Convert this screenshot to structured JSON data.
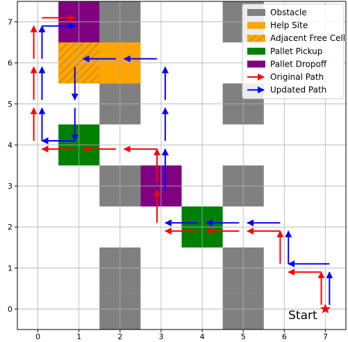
{
  "chart_data": {
    "type": "grid-path-plot",
    "title": "",
    "xlabel": "",
    "ylabel": "",
    "xlim": [
      -0.5,
      7.5
    ],
    "ylim": [
      -0.5,
      7.5
    ],
    "xticks": [
      0,
      1,
      2,
      3,
      4,
      5,
      6,
      7
    ],
    "yticks": [
      0,
      1,
      2,
      3,
      4,
      5,
      6,
      7
    ],
    "grid": true,
    "legend_position": "top-right",
    "colors": {
      "obstacle": "#808080",
      "help_site": "#ffa500",
      "adjacent_free_cell": "#ffa500",
      "adjacent_hatch": "#b07a10",
      "pallet_pickup": "#008000",
      "pallet_dropoff": "#800080",
      "original_path": "#ff0000",
      "updated_path": "#0000ff",
      "start_marker": "#ff0000"
    },
    "legend": [
      {
        "label": "Obstacle",
        "kind": "patch",
        "key": "obstacle"
      },
      {
        "label": "Help Site",
        "kind": "patch",
        "key": "help_site"
      },
      {
        "label": "Adjacent Free Cell",
        "kind": "hatch",
        "key": "adjacent_free_cell"
      },
      {
        "label": "Pallet Pickup",
        "kind": "patch",
        "key": "pallet_pickup"
      },
      {
        "label": "Pallet Dropoff",
        "kind": "patch",
        "key": "pallet_dropoff"
      },
      {
        "label": "Original Path",
        "kind": "arrow",
        "key": "original_path"
      },
      {
        "label": "Updated Path",
        "kind": "arrow",
        "key": "updated_path"
      }
    ],
    "obstacles": [
      [
        2,
        0
      ],
      [
        2,
        1
      ],
      [
        2,
        5
      ],
      [
        2,
        6
      ],
      [
        2,
        7
      ],
      [
        2,
        3
      ],
      [
        5,
        0
      ],
      [
        5,
        1
      ],
      [
        5,
        3
      ],
      [
        5,
        5
      ],
      [
        5,
        7
      ]
    ],
    "help_site": [
      [
        2,
        6
      ]
    ],
    "adjacent_free_cell": [
      [
        1,
        6
      ]
    ],
    "pallet_pickup": [
      [
        1,
        4
      ],
      [
        4,
        2
      ]
    ],
    "pallet_dropoff": [
      [
        1,
        7
      ],
      [
        3,
        3
      ]
    ],
    "start": {
      "x": 7,
      "y": 0,
      "label": "Start"
    },
    "original_path": [
      [
        6.9,
        0.1,
        6.9,
        0.9
      ],
      [
        6.9,
        0.9,
        6.1,
        0.9
      ],
      [
        5.9,
        1.1,
        5.9,
        1.9
      ],
      [
        5.9,
        1.9,
        5.1,
        1.9
      ],
      [
        4.9,
        1.9,
        4.1,
        1.9
      ],
      [
        3.9,
        1.9,
        3.1,
        1.9
      ],
      [
        2.9,
        2.1,
        2.9,
        2.9
      ],
      [
        2.9,
        3.1,
        2.9,
        3.9
      ],
      [
        2.9,
        3.9,
        2.1,
        3.9
      ],
      [
        1.9,
        3.9,
        1.1,
        3.9
      ],
      [
        0.9,
        3.9,
        0.1,
        3.9
      ],
      [
        -0.1,
        4.1,
        -0.1,
        4.9
      ],
      [
        -0.1,
        5.1,
        -0.1,
        5.9
      ],
      [
        -0.1,
        6.1,
        -0.1,
        6.9
      ],
      [
        0.1,
        7.1,
        0.9,
        7.1
      ]
    ],
    "updated_path": [
      [
        7.1,
        0.1,
        7.1,
        0.9
      ],
      [
        7.1,
        1.1,
        6.1,
        1.1
      ],
      [
        6.1,
        1.1,
        6.1,
        1.9
      ],
      [
        5.9,
        2.1,
        5.1,
        2.1
      ],
      [
        4.9,
        2.1,
        4.1,
        2.1
      ],
      [
        3.9,
        2.1,
        3.1,
        2.1
      ],
      [
        3.1,
        2.9,
        3.1,
        3.9
      ],
      [
        3.1,
        4.1,
        3.1,
        4.9
      ],
      [
        3.1,
        5.1,
        3.1,
        5.9
      ],
      [
        2.9,
        6.1,
        2.1,
        6.1
      ],
      [
        1.9,
        6.1,
        1.1,
        6.1
      ],
      [
        0.9,
        5.9,
        0.9,
        5.1
      ],
      [
        0.9,
        4.9,
        0.9,
        4.1
      ],
      [
        0.9,
        4.1,
        0.1,
        4.1
      ],
      [
        0.1,
        4.1,
        0.1,
        4.9
      ],
      [
        0.1,
        5.1,
        0.1,
        5.9
      ],
      [
        0.1,
        6.1,
        0.1,
        6.9
      ],
      [
        0.1,
        6.9,
        0.9,
        6.9
      ]
    ]
  }
}
